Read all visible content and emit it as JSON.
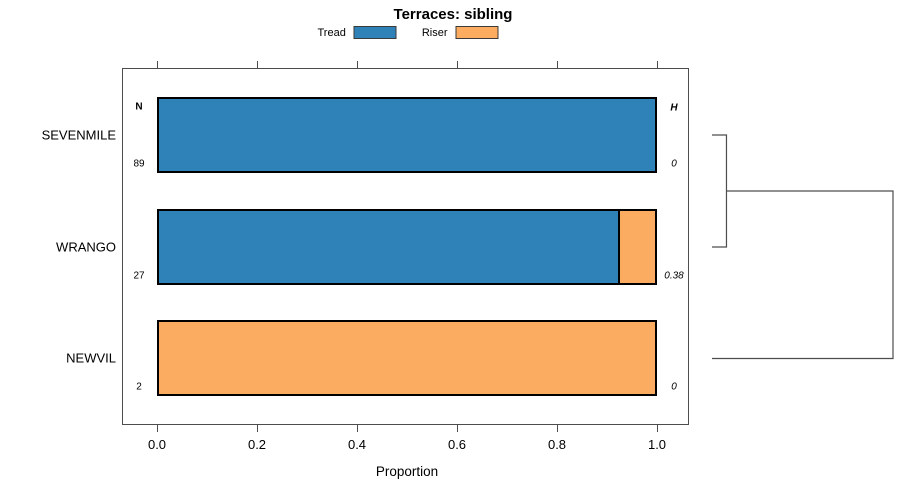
{
  "title": "Terraces: sibling",
  "legend": {
    "items": [
      {
        "label": "Tread",
        "color": "#2E82B8"
      },
      {
        "label": "Riser",
        "color": "#FBAC60"
      }
    ]
  },
  "axis": {
    "xlabel": "Proportion",
    "ticks": [
      "0.0",
      "0.2",
      "0.4",
      "0.6",
      "0.8",
      "1.0"
    ]
  },
  "chart_data": {
    "type": "bar",
    "orientation": "horizontal",
    "stacked": true,
    "title": "Terraces: sibling",
    "xlabel": "Proportion",
    "xlim": [
      0,
      1
    ],
    "xticks": [
      0,
      0.2,
      0.4,
      0.6,
      0.8,
      1.0
    ],
    "grid": false,
    "legend_position": "top",
    "categories": [
      "SEVENMILE",
      "WRANGO",
      "NEWVIL"
    ],
    "series": [
      {
        "name": "Tread",
        "color": "#2E82B8",
        "values": [
          1.0,
          0.926,
          0.0
        ]
      },
      {
        "name": "Riser",
        "color": "#FBAC60",
        "values": [
          0.0,
          0.074,
          1.0
        ]
      }
    ],
    "annotations": {
      "n_label": "N",
      "n_values": [
        "89",
        "27",
        "2"
      ],
      "h_label": "H",
      "h_values": [
        "0",
        "0.38",
        "0"
      ]
    },
    "dendrogram": {
      "leaves": [
        "SEVENMILE",
        "WRANGO",
        "NEWVIL"
      ],
      "merges": [
        {
          "children": [
            "SEVENMILE",
            "WRANGO"
          ],
          "relative_height": 0.08
        },
        {
          "children": [
            "merge-0",
            "NEWVIL"
          ],
          "relative_height": 1.0
        }
      ]
    }
  }
}
